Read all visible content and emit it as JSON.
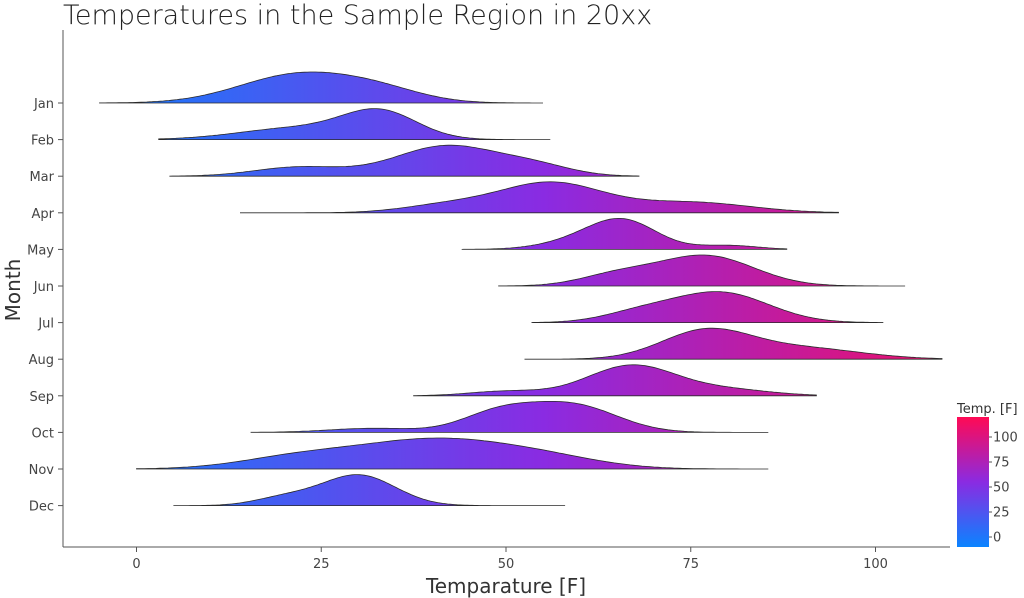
{
  "chart_data": {
    "type": "ridgeline",
    "title": "Temperatures in the Sample Region in 20xx",
    "xlabel": "Temparature [F]",
    "ylabel": "Month",
    "xlim": [
      -10,
      110
    ],
    "xticks": [
      0,
      25,
      50,
      75,
      100
    ],
    "grid": false,
    "categories": [
      "Jan",
      "Feb",
      "Mar",
      "Apr",
      "May",
      "Jun",
      "Jul",
      "Aug",
      "Sep",
      "Oct",
      "Nov",
      "Dec"
    ],
    "series": [
      {
        "name": "Jan",
        "range": [
          -5,
          55
        ],
        "peaks": [
          [
            22,
            1.0,
            8
          ],
          [
            33,
            0.35,
            6
          ]
        ]
      },
      {
        "name": "Feb",
        "range": [
          3,
          56
        ],
        "peaks": [
          [
            33,
            1.0,
            5
          ],
          [
            22,
            0.45,
            8
          ]
        ]
      },
      {
        "name": "Mar",
        "range": [
          4.5,
          68
        ],
        "peaks": [
          [
            42,
            1.0,
            7
          ],
          [
            22,
            0.3,
            6
          ],
          [
            54,
            0.3,
            5
          ]
        ]
      },
      {
        "name": "Apr",
        "range": [
          14,
          95
        ],
        "peaks": [
          [
            56,
            1.0,
            7
          ],
          [
            75,
            0.35,
            8
          ],
          [
            42,
            0.25,
            6
          ]
        ]
      },
      {
        "name": "May",
        "range": [
          44,
          88
        ],
        "peaks": [
          [
            66,
            1.0,
            4.5
          ],
          [
            60,
            0.3,
            5
          ],
          [
            80,
            0.15,
            4
          ]
        ]
      },
      {
        "name": "Jun",
        "range": [
          49,
          104
        ],
        "peaks": [
          [
            77,
            1.0,
            6.5
          ],
          [
            65,
            0.35,
            5
          ]
        ]
      },
      {
        "name": "Jul",
        "range": [
          53.5,
          101
        ],
        "peaks": [
          [
            79,
            1.0,
            6.5
          ],
          [
            68,
            0.3,
            5
          ]
        ]
      },
      {
        "name": "Aug",
        "range": [
          52.5,
          109
        ],
        "peaks": [
          [
            77,
            1.0,
            6
          ],
          [
            90,
            0.4,
            8
          ]
        ]
      },
      {
        "name": "Sep",
        "range": [
          37.5,
          92
        ],
        "peaks": [
          [
            67,
            1.0,
            6
          ],
          [
            50,
            0.15,
            5
          ],
          [
            80,
            0.2,
            6
          ]
        ]
      },
      {
        "name": "Oct",
        "range": [
          15.5,
          85.5
        ],
        "peaks": [
          [
            59,
            1.0,
            6
          ],
          [
            49,
            0.7,
            5
          ],
          [
            32,
            0.15,
            6
          ]
        ]
      },
      {
        "name": "Nov",
        "range": [
          0,
          85.5
        ],
        "peaks": [
          [
            40,
            1.0,
            10
          ],
          [
            22,
            0.4,
            8
          ],
          [
            55,
            0.35,
            8
          ]
        ]
      },
      {
        "name": "Dec",
        "range": [
          5,
          58
        ],
        "peaks": [
          [
            30,
            1.0,
            5
          ],
          [
            20,
            0.25,
            4
          ]
        ]
      }
    ],
    "colorbar": {
      "title": "Temp. [F]",
      "ticks": [
        0,
        25,
        50,
        75,
        100
      ],
      "range": [
        -10,
        120
      ],
      "colors": [
        "#0a84ff",
        "#8a2be2",
        "#ff0a54"
      ]
    }
  }
}
